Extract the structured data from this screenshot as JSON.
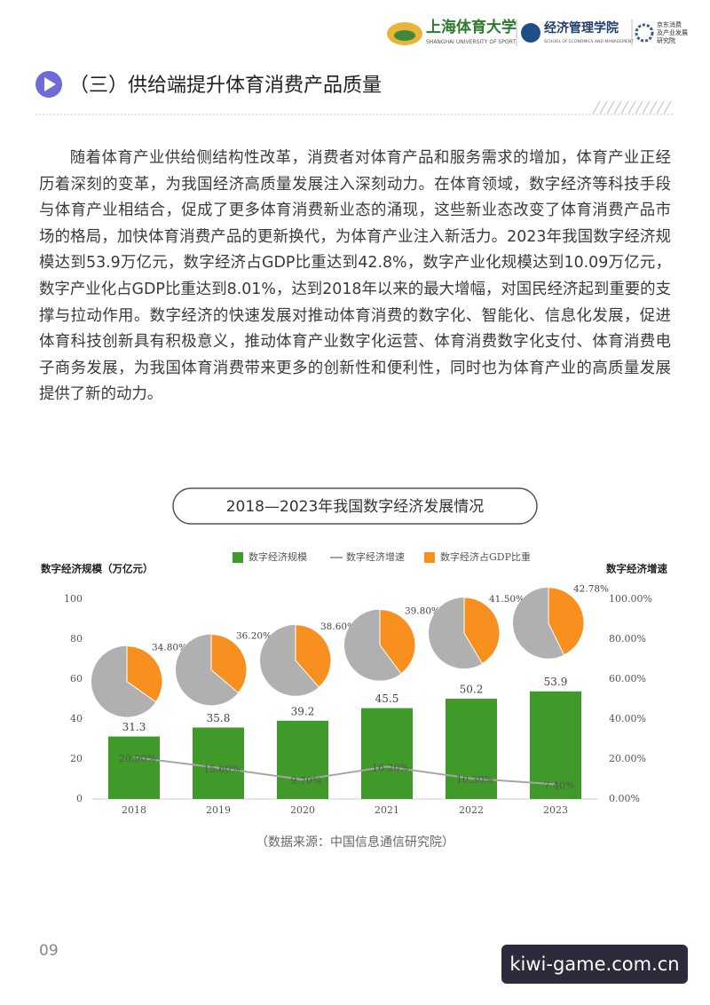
{
  "header": {
    "logos": [
      "上海体育大学",
      "SHANGHAI UNIVERSITY OF SPORT",
      "经济管理学院",
      "SCHOOL OF ECONOMICS AND MANAGEMENT"
    ],
    "institute": [
      "京东消费",
      "及产业发展",
      "研究院"
    ]
  },
  "section_title": "（三）供给端提升体育消费产品质量",
  "paragraph": "随着体育产业供给侧结构性改革，消费者对体育产品和服务需求的增加，体育产业正经历着深刻的变革，为我国经济高质量发展注入深刻动力。在体育领域，数字经济等科技手段与体育产业相结合，促成了更多体育消费新业态的涌现，这些新业态改变了体育消费产品市场的格局，加快体育消费产品的更新换代，为体育产业注入新活力。2023年我国数字经济规模达到53.9万亿元，数字经济占GDP比重达到42.8%，数字产业化规模达到10.09万亿元，数字产业化占GDP比重达到8.01%，达到2018年以来的最大增幅，对国民经济起到重要的支撑与拉动作用。数字经济的快速发展对推动体育消费的数字化、智能化、信息化发展，促进体育科技创新具有积极意义，推动体育产业数字化运营、体育消费数字化支付、体育消费电子商务发展，为我国体育消费带来更多的创新性和便利性，同时也为体育产业的高质量发展提供了新的动力。",
  "chart_data": {
    "type": "combo",
    "title": "2018—2023年我国数字经济发展情况",
    "ylabel": "数字经济规模（万亿元）",
    "y2label": "数字经济增速",
    "categories": [
      "2018",
      "2019",
      "2020",
      "2021",
      "2022",
      "2023"
    ],
    "series": [
      {
        "name": "数字经济规模",
        "type": "bar",
        "color": "#3f9a2a",
        "values": [
          31.3,
          35.8,
          39.2,
          45.5,
          50.2,
          53.9
        ]
      },
      {
        "name": "数字经济增速",
        "type": "line",
        "axis": "y2",
        "color": "#a6a6a6",
        "values": [
          20.9,
          15.6,
          9.7,
          16.2,
          10.3,
          7.4
        ],
        "value_labels": [
          "20.90%",
          "15.60%",
          "9.70%",
          "16.20%",
          "10.30%",
          "7.40%"
        ]
      },
      {
        "name": "数字经济占GDP比重",
        "type": "pie",
        "color": "#f7901e",
        "values": [
          34.8,
          36.2,
          38.6,
          39.8,
          41.5,
          42.78
        ],
        "value_labels": [
          "34.80%",
          "36.20%",
          "38.60%",
          "39.80%",
          "41.50%",
          "42.78%"
        ]
      }
    ],
    "ylim": [
      0,
      100
    ],
    "yticks": [
      0,
      20,
      40,
      60,
      80,
      100
    ],
    "y2lim": [
      0,
      100
    ],
    "y2ticks": [
      {
        "value": 0,
        "label": "0.00%"
      },
      {
        "value": 20,
        "label": "20.00%"
      },
      {
        "value": 40,
        "label": "40.00%"
      },
      {
        "value": 60,
        "label": "60.00%"
      },
      {
        "value": 80,
        "label": "80.00%"
      },
      {
        "value": 100,
        "label": "100.00%"
      }
    ],
    "legend": "top"
  },
  "source": "（数据来源：中国信息通信研究院）",
  "page_number": "09",
  "watermark": "kiwi-game.com.cn"
}
